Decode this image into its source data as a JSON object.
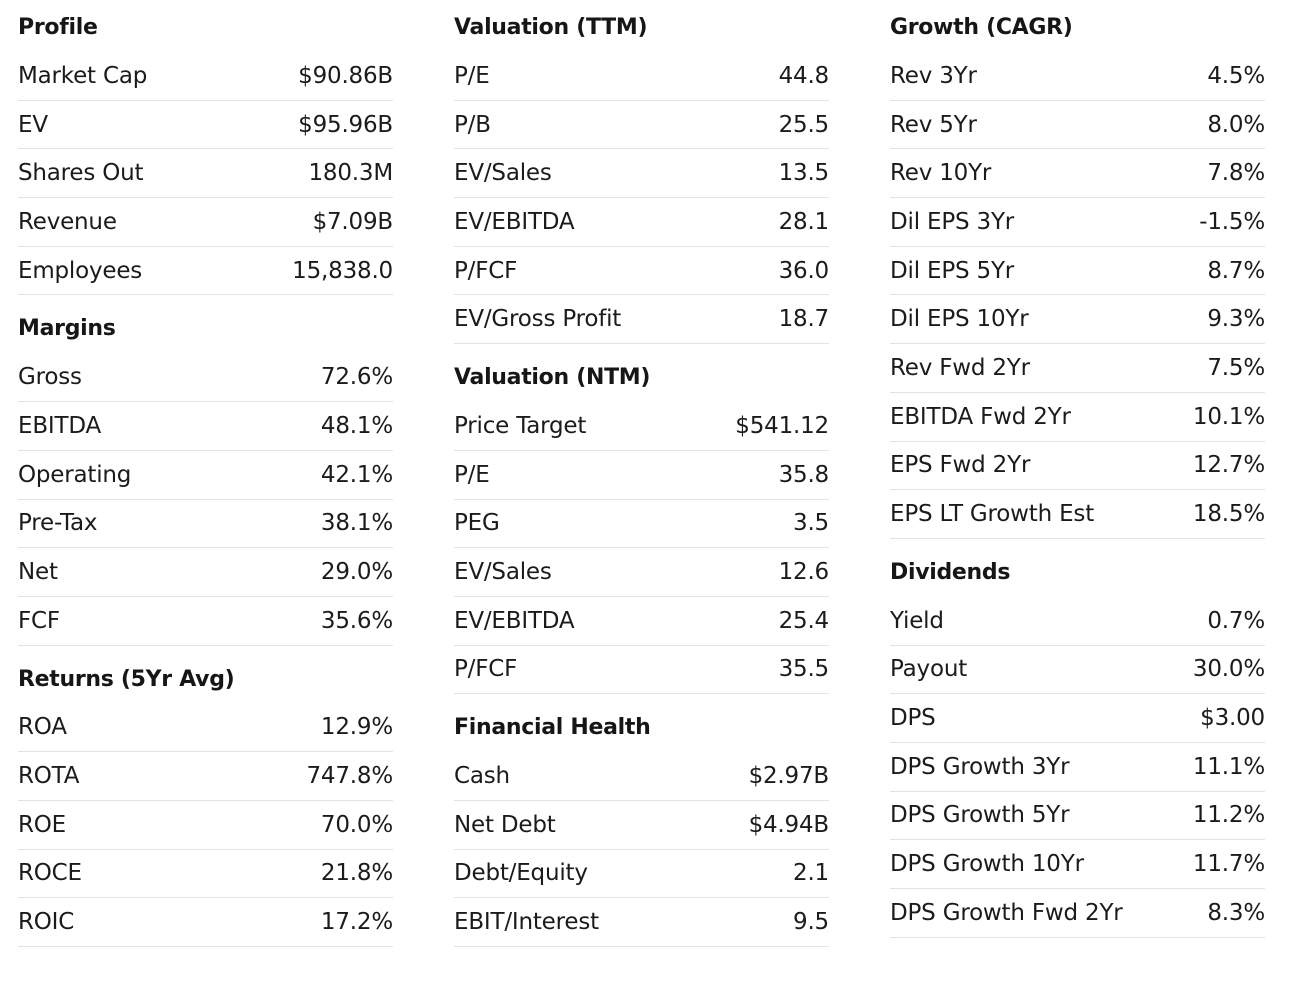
{
  "columns": [
    {
      "sections": [
        {
          "title": "Profile",
          "rows": [
            {
              "label": "Market Cap",
              "value": "$90.86B"
            },
            {
              "label": "EV",
              "value": "$95.96B"
            },
            {
              "label": "Shares Out",
              "value": "180.3M"
            },
            {
              "label": "Revenue",
              "value": "$7.09B"
            },
            {
              "label": "Employees",
              "value": "15,838.0"
            }
          ]
        },
        {
          "title": "Margins",
          "rows": [
            {
              "label": "Gross",
              "value": "72.6%"
            },
            {
              "label": "EBITDA",
              "value": "48.1%"
            },
            {
              "label": "Operating",
              "value": "42.1%"
            },
            {
              "label": "Pre-Tax",
              "value": "38.1%"
            },
            {
              "label": "Net",
              "value": "29.0%"
            },
            {
              "label": "FCF",
              "value": "35.6%"
            }
          ]
        },
        {
          "title": "Returns (5Yr Avg)",
          "rows": [
            {
              "label": "ROA",
              "value": "12.9%"
            },
            {
              "label": "ROTA",
              "value": "747.8%"
            },
            {
              "label": "ROE",
              "value": "70.0%"
            },
            {
              "label": "ROCE",
              "value": "21.8%"
            },
            {
              "label": "ROIC",
              "value": "17.2%"
            }
          ]
        }
      ]
    },
    {
      "sections": [
        {
          "title": "Valuation (TTM)",
          "rows": [
            {
              "label": "P/E",
              "value": "44.8"
            },
            {
              "label": "P/B",
              "value": "25.5"
            },
            {
              "label": "EV/Sales",
              "value": "13.5"
            },
            {
              "label": "EV/EBITDA",
              "value": "28.1"
            },
            {
              "label": "P/FCF",
              "value": "36.0"
            },
            {
              "label": "EV/Gross Profit",
              "value": "18.7"
            }
          ]
        },
        {
          "title": "Valuation (NTM)",
          "rows": [
            {
              "label": "Price Target",
              "value": "$541.12"
            },
            {
              "label": "P/E",
              "value": "35.8"
            },
            {
              "label": "PEG",
              "value": "3.5"
            },
            {
              "label": "EV/Sales",
              "value": "12.6"
            },
            {
              "label": "EV/EBITDA",
              "value": "25.4"
            },
            {
              "label": "P/FCF",
              "value": "35.5"
            }
          ]
        },
        {
          "title": "Financial Health",
          "rows": [
            {
              "label": "Cash",
              "value": "$2.97B"
            },
            {
              "label": "Net Debt",
              "value": "$4.94B"
            },
            {
              "label": "Debt/Equity",
              "value": "2.1"
            },
            {
              "label": "EBIT/Interest",
              "value": "9.5"
            }
          ]
        }
      ]
    },
    {
      "sections": [
        {
          "title": "Growth (CAGR)",
          "rows": [
            {
              "label": "Rev 3Yr",
              "value": "4.5%"
            },
            {
              "label": "Rev 5Yr",
              "value": "8.0%"
            },
            {
              "label": "Rev 10Yr",
              "value": "7.8%"
            },
            {
              "label": "Dil EPS 3Yr",
              "value": "-1.5%"
            },
            {
              "label": "Dil EPS 5Yr",
              "value": "8.7%"
            },
            {
              "label": "Dil EPS 10Yr",
              "value": "9.3%"
            },
            {
              "label": "Rev Fwd 2Yr",
              "value": "7.5%"
            },
            {
              "label": "EBITDA Fwd 2Yr",
              "value": "10.1%"
            },
            {
              "label": "EPS Fwd 2Yr",
              "value": "12.7%"
            },
            {
              "label": "EPS LT Growth Est",
              "value": "18.5%"
            }
          ]
        },
        {
          "title": "Dividends",
          "rows": [
            {
              "label": "Yield",
              "value": "0.7%"
            },
            {
              "label": "Payout",
              "value": "30.0%"
            },
            {
              "label": "DPS",
              "value": "$3.00"
            },
            {
              "label": "DPS Growth 3Yr",
              "value": "11.1%"
            },
            {
              "label": "DPS Growth 5Yr",
              "value": "11.2%"
            },
            {
              "label": "DPS Growth 10Yr",
              "value": "11.7%"
            },
            {
              "label": "DPS Growth Fwd 2Yr",
              "value": "8.3%"
            }
          ]
        }
      ]
    }
  ]
}
